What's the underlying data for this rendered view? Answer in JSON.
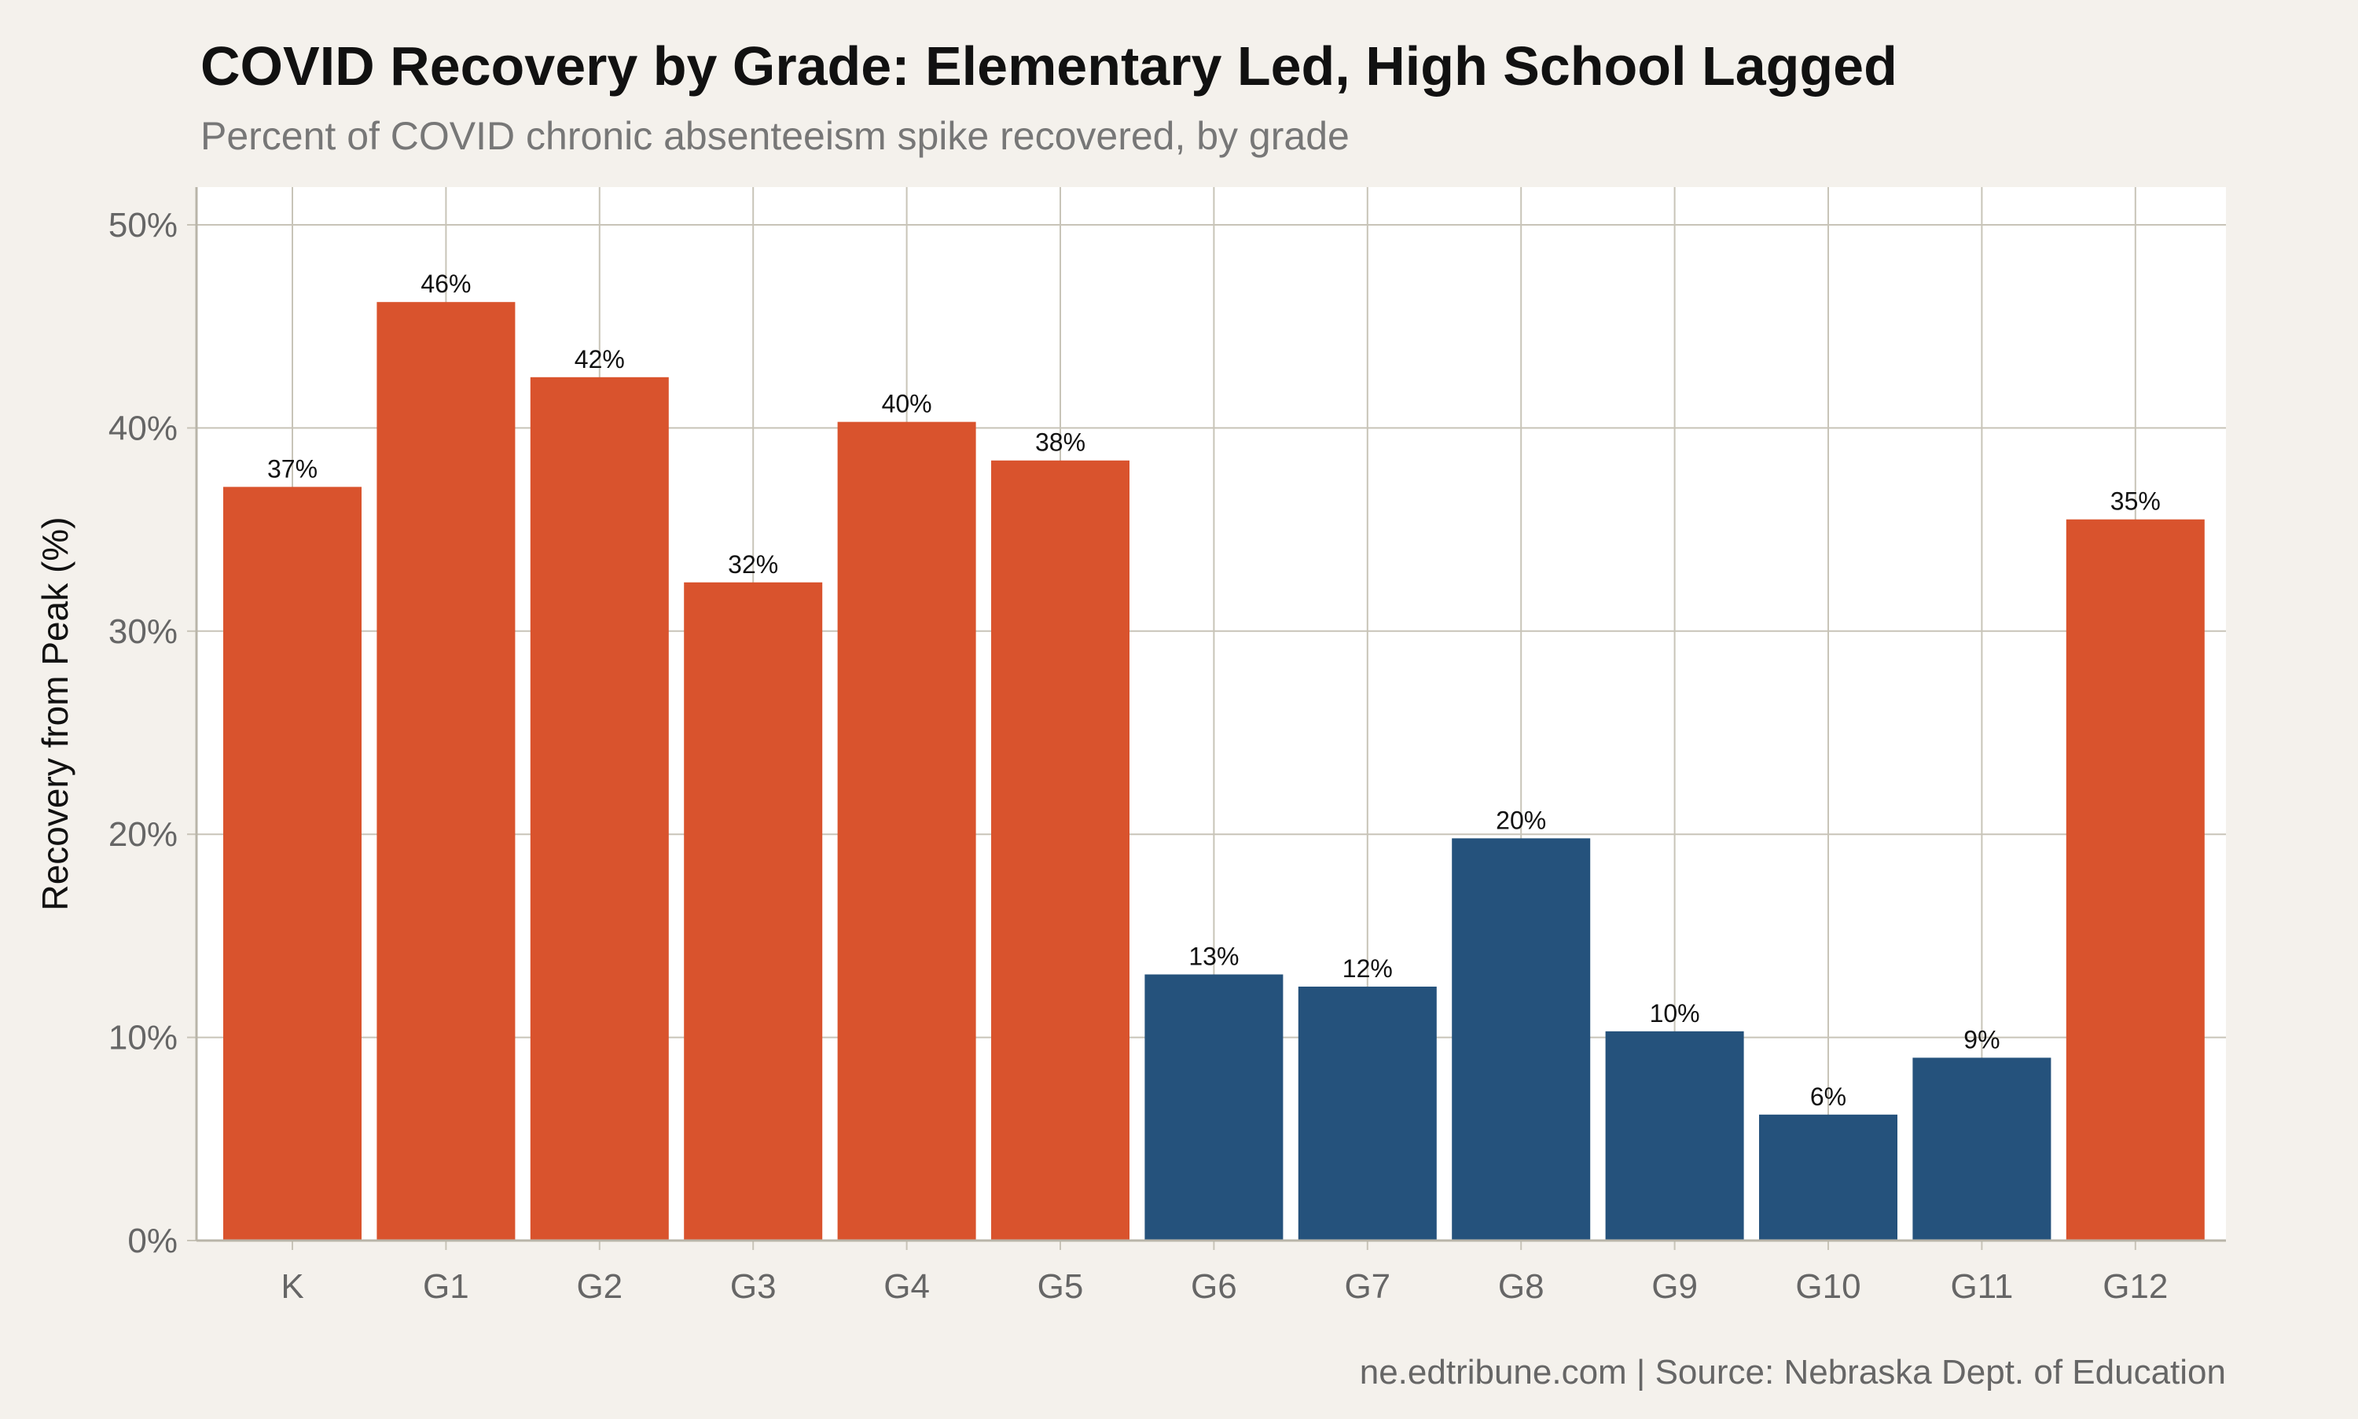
{
  "title": "COVID Recovery by Grade: Elementary Led, High School Lagged",
  "subtitle": "Percent of COVID chronic absenteeism spike recovered, by grade",
  "caption": "ne.edtribune.com | Source: Nebraska Dept. of Education",
  "colors": {
    "background": "#f4f1ec",
    "panel": "#ffffff",
    "grid": "#c8c4b8",
    "recovered_more": "#d9532d",
    "recovered_less": "#25527c",
    "title": "#111111",
    "subtitle": "#777777",
    "axis_text": "#666666"
  },
  "chart_data": {
    "type": "bar",
    "categories": [
      "K",
      "G1",
      "G2",
      "G3",
      "G4",
      "G5",
      "G6",
      "G7",
      "G8",
      "G9",
      "G10",
      "G11",
      "G12"
    ],
    "values": [
      37.1,
      46.2,
      42.5,
      32.4,
      40.3,
      38.4,
      13.1,
      12.5,
      19.8,
      10.3,
      6.2,
      9.0,
      35.5
    ],
    "data_labels": [
      "37%",
      "46%",
      "42%",
      "32%",
      "40%",
      "38%",
      "13%",
      "12%",
      "20%",
      "10%",
      "6%",
      "9%",
      "35%"
    ],
    "bar_color_groups": [
      "recovered_more",
      "recovered_more",
      "recovered_more",
      "recovered_more",
      "recovered_more",
      "recovered_more",
      "recovered_less",
      "recovered_less",
      "recovered_less",
      "recovered_less",
      "recovered_less",
      "recovered_less",
      "recovered_more"
    ],
    "xlabel": "",
    "ylabel": "Recovery from Peak (%)",
    "ylim": [
      0,
      50
    ],
    "yticks": [
      0,
      10,
      20,
      30,
      40,
      50
    ],
    "ytick_labels": [
      "0%",
      "10%",
      "20%",
      "30%",
      "40%",
      "50%"
    ],
    "grid": true,
    "legend": "none"
  }
}
